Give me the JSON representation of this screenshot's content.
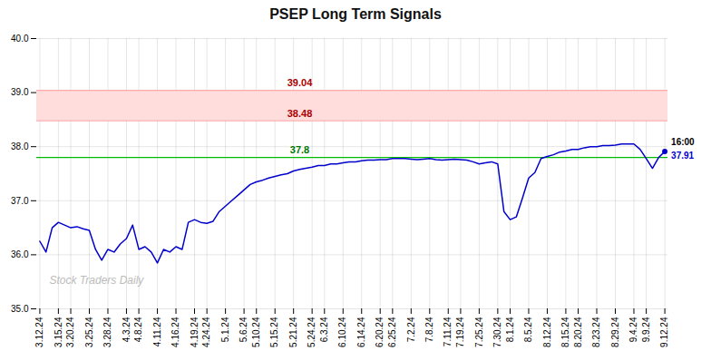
{
  "chart_data": {
    "type": "line",
    "title": "PSEP Long Term Signals",
    "watermark": "Stock Traders Daily",
    "color": "#0000cc",
    "categories": [
      "3.12.24",
      null,
      null,
      "3.15.24",
      null,
      "3.20.24",
      null,
      null,
      "3.25.24",
      null,
      null,
      "3.28.24",
      null,
      null,
      "4.3.24",
      null,
      "4.8.24",
      null,
      null,
      "4.11.24",
      null,
      null,
      "4.16.24",
      null,
      null,
      "4.19.24",
      null,
      "4.24.24",
      null,
      null,
      "5.1.24",
      null,
      null,
      "5.6.24",
      null,
      "5.10.24",
      null,
      null,
      "5.15.24",
      null,
      null,
      "5.21.24",
      null,
      null,
      "5.24.24",
      null,
      "6.3.24",
      null,
      null,
      "6.10.24",
      null,
      null,
      "6.14.24",
      null,
      null,
      "6.20.24",
      null,
      "6.25.24",
      null,
      null,
      "7.2.24",
      null,
      null,
      "7.8.24",
      null,
      null,
      "7.11.24",
      null,
      "7.19.24",
      null,
      null,
      "7.25.24",
      null,
      null,
      "7.30.24",
      null,
      "8.1.24",
      null,
      null,
      "8.5.24",
      null,
      null,
      "8.12.24",
      null,
      null,
      "8.15.24",
      null,
      "8.20.24",
      null,
      null,
      "8.23.24",
      null,
      null,
      "8.29.24",
      null,
      null,
      "9.4.24",
      null,
      "9.9.24",
      null,
      null,
      "9.12.24"
    ],
    "values": [
      36.25,
      36.05,
      36.5,
      36.6,
      36.55,
      36.5,
      36.52,
      36.48,
      36.45,
      36.1,
      35.9,
      36.1,
      36.05,
      36.2,
      36.3,
      36.55,
      36.1,
      36.15,
      36.05,
      35.85,
      36.1,
      36.05,
      36.15,
      36.1,
      36.6,
      36.65,
      36.6,
      36.58,
      36.62,
      36.8,
      36.9,
      37.0,
      37.1,
      37.2,
      37.3,
      37.35,
      37.38,
      37.42,
      37.45,
      37.48,
      37.5,
      37.55,
      37.58,
      37.6,
      37.62,
      37.65,
      37.65,
      37.68,
      37.68,
      37.7,
      37.72,
      37.72,
      37.74,
      37.75,
      37.75,
      37.76,
      37.76,
      37.78,
      37.78,
      37.78,
      37.77,
      37.76,
      37.77,
      37.78,
      37.76,
      37.75,
      37.76,
      37.77,
      37.76,
      37.75,
      37.72,
      37.68,
      37.7,
      37.72,
      37.68,
      36.8,
      36.65,
      36.7,
      37.05,
      37.42,
      37.52,
      37.78,
      37.82,
      37.85,
      37.9,
      37.92,
      37.95,
      37.95,
      37.98,
      38.0,
      38.0,
      38.02,
      38.02,
      38.03,
      38.05,
      38.05,
      38.05,
      37.95,
      37.78,
      37.6,
      37.8,
      37.91
    ],
    "ylim": [
      35,
      40
    ],
    "yticks": [
      35,
      36,
      37,
      38,
      39,
      40
    ],
    "grid": true,
    "band": {
      "from": 38.48,
      "to": 39.04,
      "color": "#ffdddd"
    },
    "reference_lines": [
      {
        "value": 39.04,
        "label": "39.04",
        "color": "#ffaaaa",
        "label_color": "#aa0000"
      },
      {
        "value": 38.48,
        "label": "38.48",
        "color": "#ffaaaa",
        "label_color": "#aa0000"
      },
      {
        "value": 37.8,
        "label": "37.8",
        "color": "#00bb00",
        "label_color": "#007700"
      }
    ],
    "last_point": {
      "value": 37.91,
      "label": "37.91",
      "time_label": "16:00",
      "color": "#0000cc",
      "label_color": "#0000cc"
    }
  }
}
